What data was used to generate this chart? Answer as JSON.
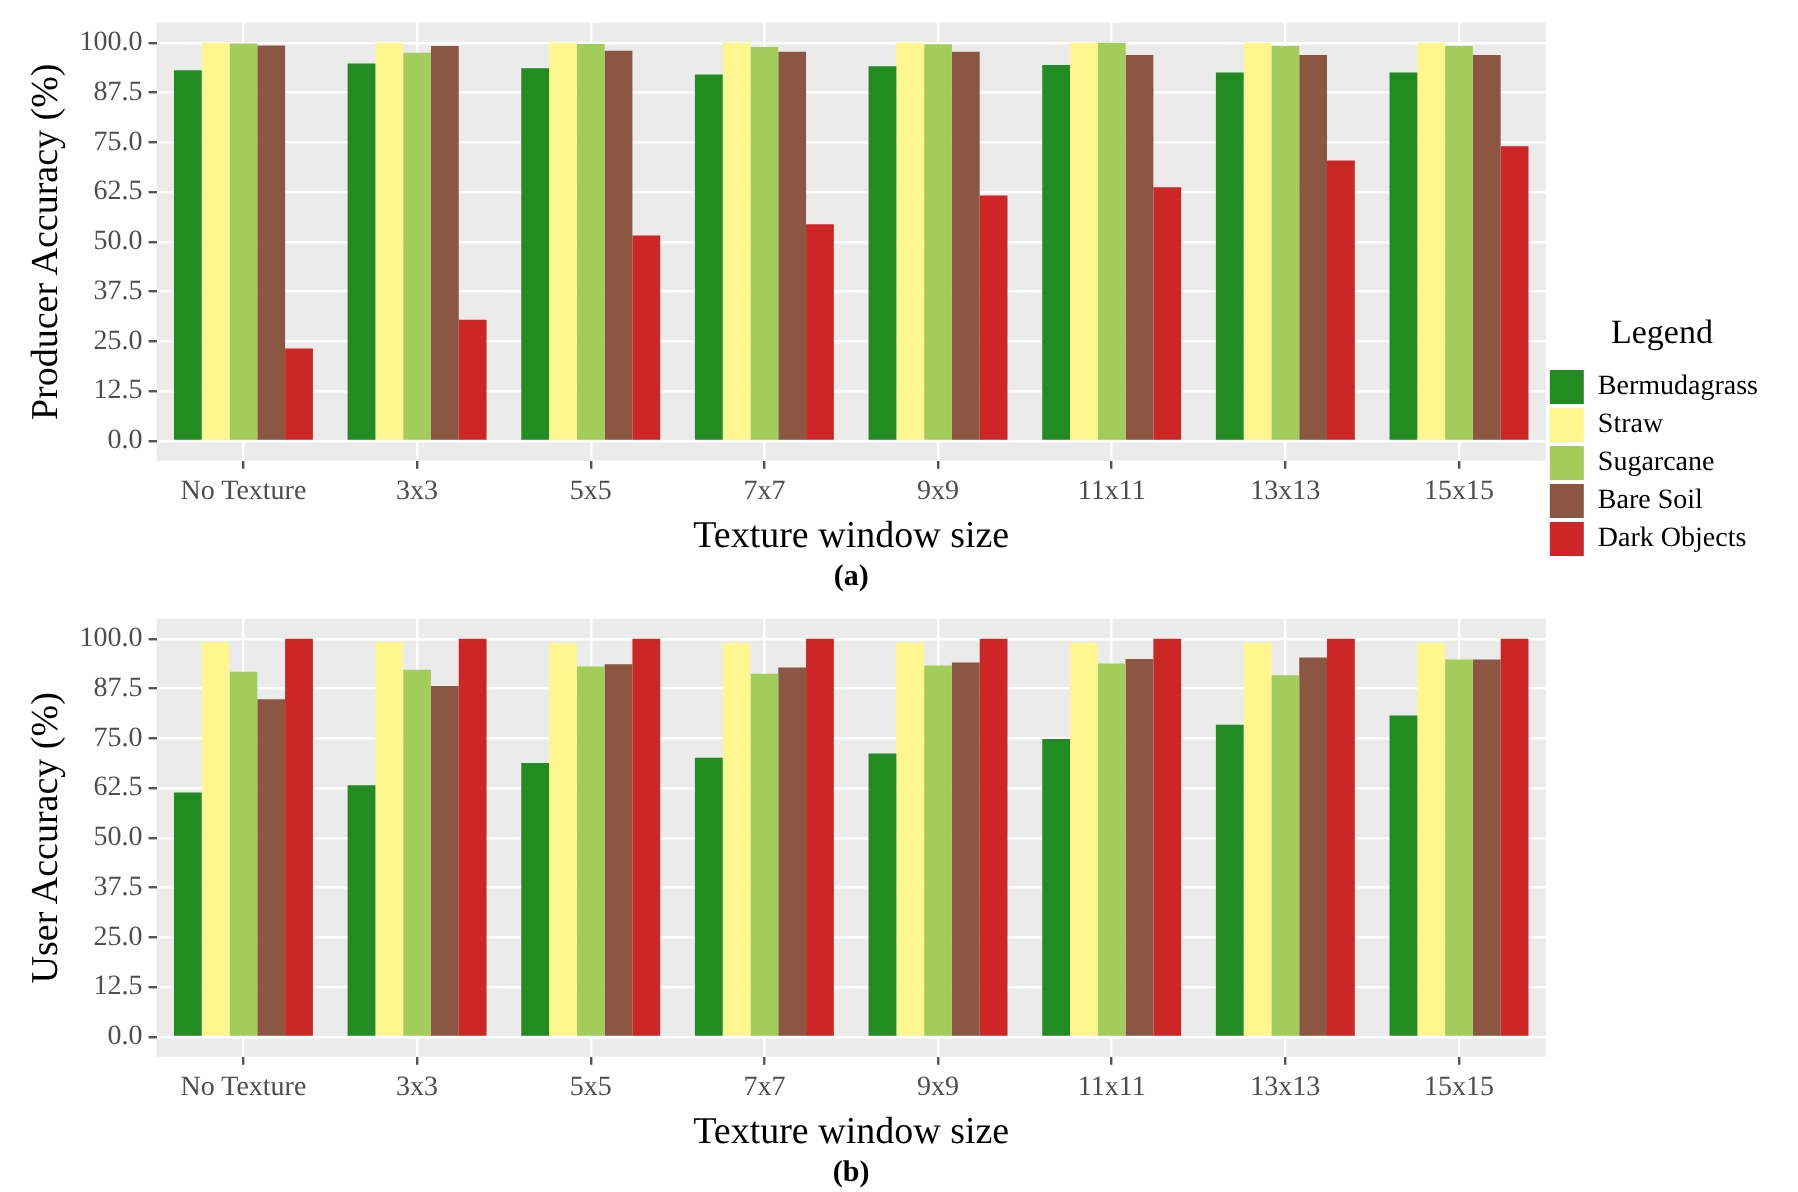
{
  "chart_data": [
    {
      "type": "bar",
      "xlabel": "Texture window size",
      "ylabel": "Producer Accuracy (%)",
      "legend_title": "Legend",
      "legend": "right",
      "grid": true,
      "annotations": [
        "(a)"
      ],
      "categories": [
        "No Texture",
        "3x3",
        "5x5",
        "7x7",
        "9x9",
        "11x11",
        "13x13",
        "15x15"
      ],
      "ylim": [
        -5,
        105
      ],
      "yticks": [
        {
          "value": 0,
          "label": "0.0"
        },
        12.5,
        {
          "value": 25,
          "label": "25.0"
        },
        37.5,
        {
          "value": 50,
          "label": "50.0"
        },
        62.5,
        {
          "value": 75,
          "label": "75.0"
        },
        87.5,
        {
          "value": 100,
          "label": "100.0"
        }
      ],
      "series": [
        {
          "name": "Bermudagrass",
          "color": "#228b22",
          "values": [
            93.1,
            94.8,
            93.6,
            92.0,
            94.1,
            94.4,
            92.5,
            92.5
          ]
        },
        {
          "name": "Straw",
          "color": "#fff68f",
          "values": [
            100,
            100,
            100,
            100,
            100,
            100,
            100,
            100
          ]
        },
        {
          "name": "Sugarcane",
          "color": "#a2cd5a",
          "values": [
            99.8,
            97.5,
            99.7,
            98.9,
            99.6,
            100,
            99.2,
            99.2
          ]
        },
        {
          "name": "Bare Soil",
          "color": "#8b5742",
          "values": [
            99.3,
            99.2,
            98.0,
            97.7,
            97.7,
            96.9,
            96.9,
            96.9
          ]
        },
        {
          "name": "Dark Objects",
          "color": "#cd2626",
          "values": [
            23.2,
            30.4,
            51.6,
            54.4,
            61.6,
            63.7,
            70.4,
            74.0
          ]
        }
      ]
    },
    {
      "type": "bar",
      "xlabel": "Texture window size",
      "ylabel": "User Accuracy (%)",
      "grid": true,
      "annotations": [
        "(b)"
      ],
      "categories": [
        "No Texture",
        "3x3",
        "5x5",
        "7x7",
        "9x9",
        "11x11",
        "13x13",
        "15x15"
      ],
      "ylim": [
        -5,
        105
      ],
      "yticks": [
        {
          "value": 0,
          "label": "0.0"
        },
        12.5,
        {
          "value": 25,
          "label": "25.0"
        },
        37.5,
        {
          "value": 50,
          "label": "50.0"
        },
        62.5,
        {
          "value": 75,
          "label": "75.0"
        },
        87.5,
        {
          "value": 100,
          "label": "100.0"
        }
      ],
      "series": [
        {
          "color": "#228b22",
          "values": [
            61.4,
            63.2,
            68.8,
            70.1,
            71.2,
            74.8,
            78.4,
            80.7
          ]
        },
        {
          "color": "#fff68f",
          "values": [
            99.2,
            99.2,
            98.9,
            98.9,
            99.0,
            99.0,
            99.0,
            99.0
          ]
        },
        {
          "color": "#a2cd5a",
          "values": [
            91.7,
            92.2,
            93.0,
            91.2,
            93.3,
            93.8,
            90.8,
            94.8
          ]
        },
        {
          "color": "#8b5742",
          "values": [
            84.8,
            88.1,
            93.6,
            92.8,
            94.0,
            94.9,
            95.3,
            94.8
          ]
        },
        {
          "color": "#cd2626",
          "values": [
            100,
            100,
            100,
            100,
            100,
            100,
            100,
            100
          ]
        }
      ]
    }
  ]
}
